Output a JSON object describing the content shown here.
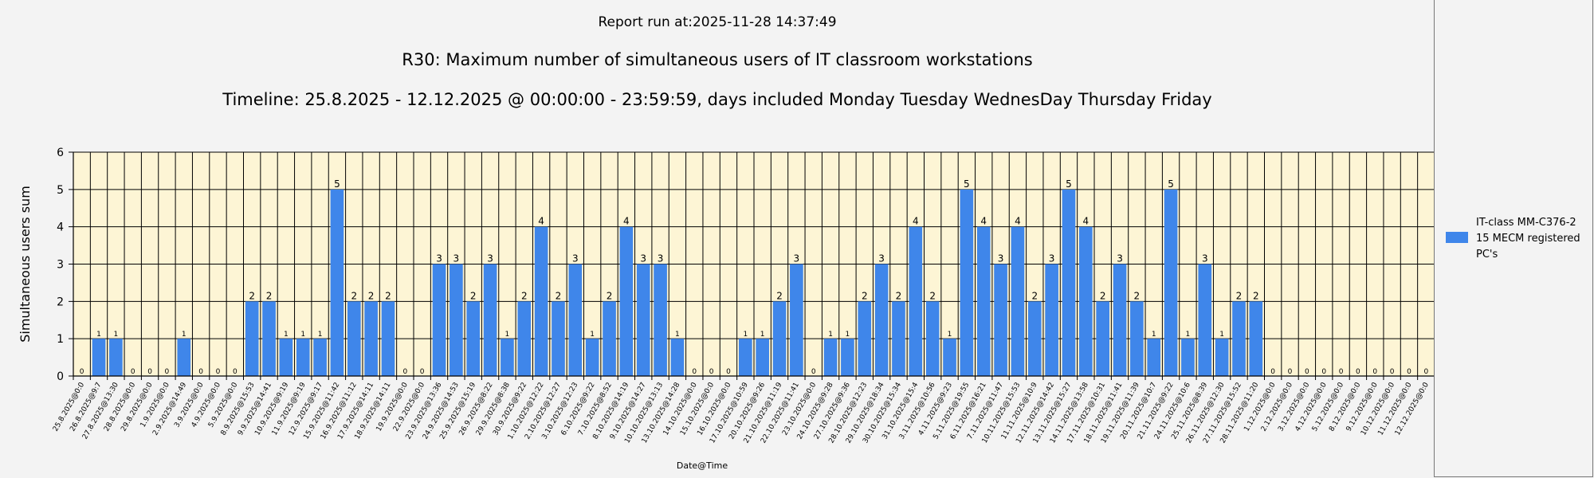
{
  "report": {
    "run_label": "Report run at:2025-11-28 14:37:49"
  },
  "colors": {
    "bar": "#3f86ea",
    "plot_background": "#fdf5d5",
    "grid": "#000000",
    "page_background": "#f3f3f3"
  },
  "legend": {
    "label": "IT-class MM-C376-2 15 MECM  registered PC's"
  },
  "chart_data": {
    "type": "bar",
    "title": "R30: Maximum number of simultaneous users of IT classroom workstations",
    "subtitle": "Timeline: 25.8.2025  - 12.12.2025  @  00:00:00 -  23:59:59, days included Monday Tuesday WednesDay Thursday Friday",
    "xlabel": "Date@Time",
    "ylabel": "Simultaneous users sum",
    "ylim": [
      0,
      6
    ],
    "yticks": [
      0,
      1,
      2,
      3,
      4,
      5,
      6
    ],
    "grid": true,
    "legend_position": "right",
    "categories": [
      "25.8.2025@0:0",
      "26.8.2025@9:7",
      "27.8.2025@13:30",
      "28.8.2025@0:0",
      "29.8.2025@0:0",
      "1.9.2025@0:0",
      "2.9.2025@14:49",
      "3.9.2025@0:0",
      "4.9.2025@0:0",
      "5.9.2025@0:0",
      "8.9.2025@15:53",
      "9.9.2025@14:41",
      "10.9.2025@9:19",
      "11.9.2025@9:19",
      "12.9.2025@9:17",
      "15.9.2025@11:42",
      "16.9.2025@11:12",
      "17.9.2025@14:11",
      "18.9.2025@14:11",
      "19.9.2025@0:0",
      "22.9.2025@0:0",
      "23.9.2025@13:36",
      "24.9.2025@14:53",
      "25.9.2025@15:19",
      "26.9.2025@8:22",
      "29.9.2025@8:38",
      "30.9.2025@9:22",
      "1.10.2025@12:22",
      "2.10.2025@12:27",
      "3.10.2025@12:23",
      "6.10.2025@9:22",
      "7.10.2025@8:52",
      "8.10.2025@14:19",
      "9.10.2025@14:27",
      "10.10.2025@13:13",
      "13.10.2025@14:28",
      "14.10.2025@0:0",
      "15.10.2025@0:0",
      "16.10.2025@0:0",
      "17.10.2025@10:59",
      "20.10.2025@9:26",
      "21.10.2025@11:19",
      "22.10.2025@11:41",
      "23.10.2025@0:0",
      "24.10.2025@9:28",
      "27.10.2025@9:36",
      "28.10.2025@12:23",
      "29.10.2025@18:34",
      "30.10.2025@15:34",
      "31.10.2025@15:4",
      "3.11.2025@10:56",
      "4.11.2025@9:23",
      "5.11.2025@19:55",
      "6.11.2025@16:21",
      "7.11.2025@11:47",
      "10.11.2025@15:53",
      "11.11.2025@10:9",
      "12.11.2025@14:42",
      "13.11.2025@15:27",
      "14.11.2025@13:58",
      "17.11.2025@10:31",
      "18.11.2025@11:41",
      "19.11.2025@11:39",
      "20.11.2025@10:7",
      "21.11.2025@9:22",
      "24.11.2025@10:6",
      "25.11.2025@8:39",
      "26.11.2025@12:30",
      "27.11.2025@15:52",
      "28.11.2025@11:20",
      "1.12.2025@0:0",
      "2.12.2025@0:0",
      "3.12.2025@0:0",
      "4.12.2025@0:0",
      "5.12.2025@0:0",
      "8.12.2025@0:0",
      "9.12.2025@0:0",
      "10.12.2025@0:0",
      "11.12.2025@0:0",
      "12.12.2025@0:0"
    ],
    "series": [
      {
        "name": "IT-class MM-C376-2 15 MECM  registered PC's",
        "values": [
          0,
          1,
          1,
          0,
          0,
          0,
          1,
          0,
          0,
          0,
          2,
          2,
          1,
          1,
          1,
          5,
          2,
          2,
          2,
          0,
          0,
          3,
          3,
          2,
          3,
          1,
          2,
          4,
          2,
          3,
          1,
          2,
          4,
          3,
          3,
          1,
          0,
          0,
          0,
          1,
          1,
          2,
          3,
          0,
          1,
          1,
          2,
          3,
          2,
          4,
          2,
          1,
          5,
          4,
          3,
          4,
          2,
          3,
          5,
          4,
          2,
          3,
          2,
          1,
          5,
          1,
          3,
          1,
          2,
          2,
          0,
          0,
          0,
          0,
          0,
          0,
          0,
          0,
          0,
          0
        ]
      }
    ]
  }
}
